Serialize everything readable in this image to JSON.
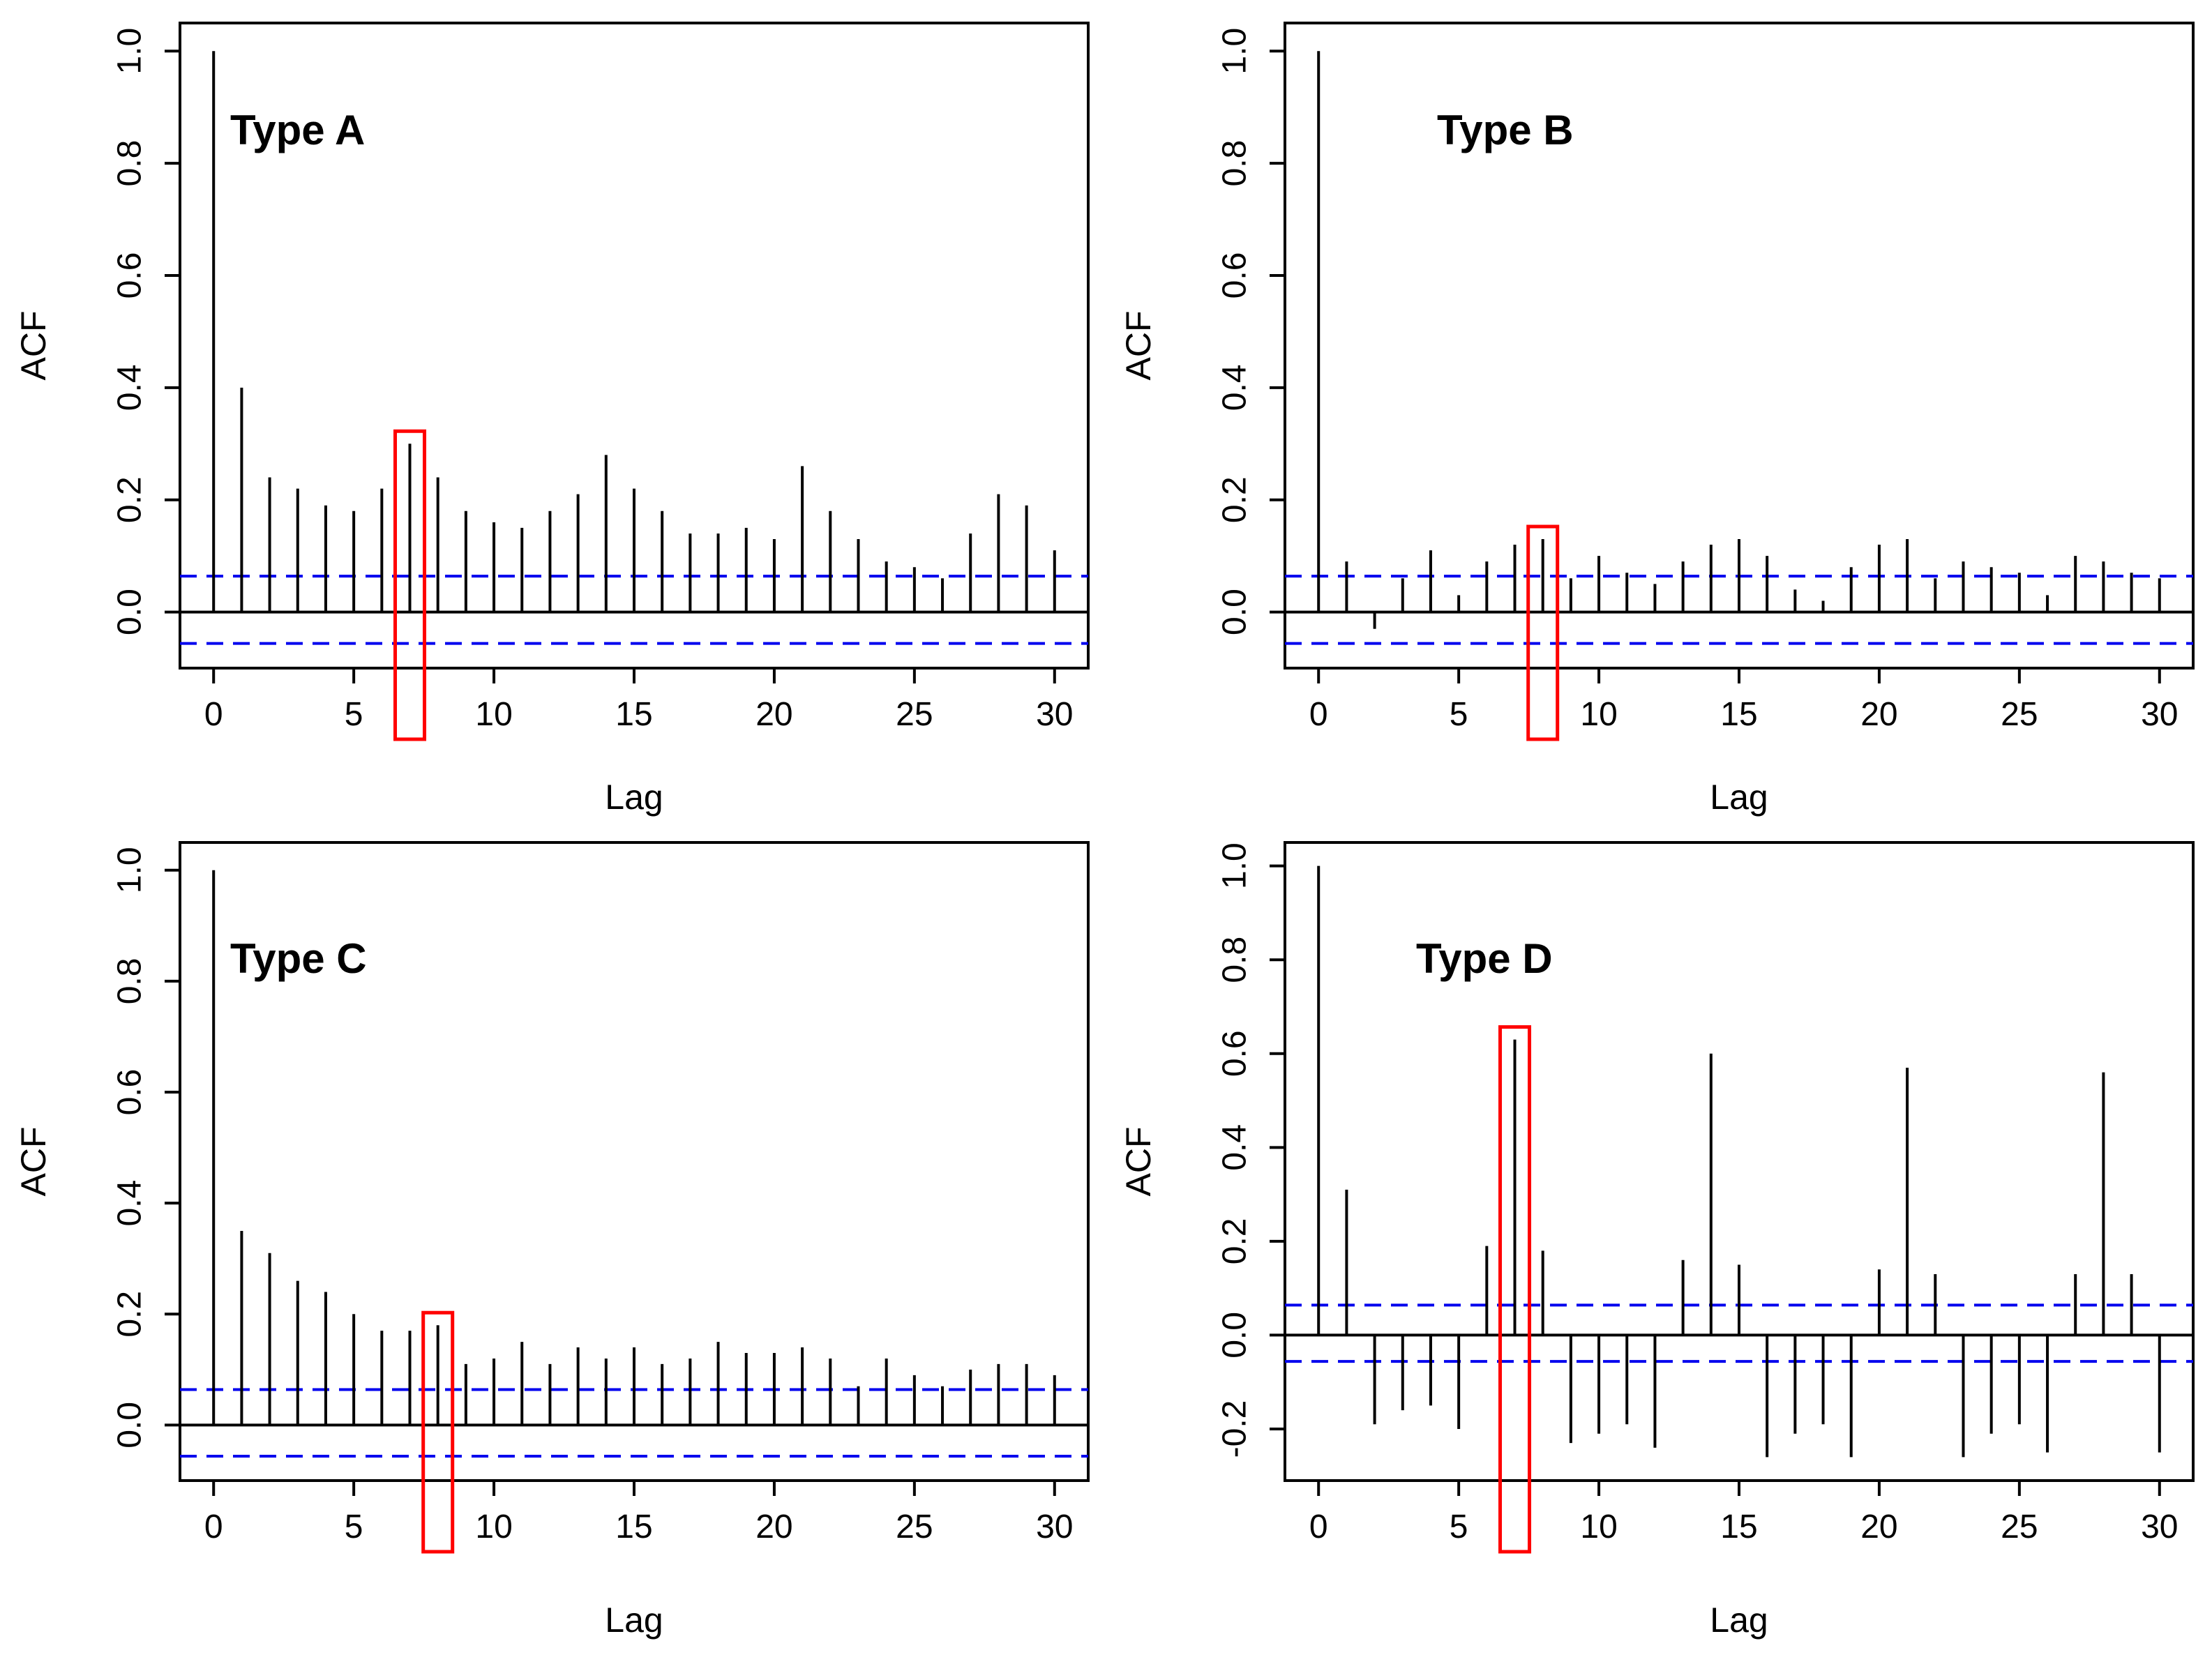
{
  "colors": {
    "stem": "#000000",
    "ci": "#0000ee",
    "highlight": "#ff0000",
    "frame": "#000000",
    "background": "#ffffff"
  },
  "chart_data": [
    {
      "type": "bar",
      "title": "Type A",
      "xlabel": "Lag",
      "ylabel": "ACF",
      "xlim": [
        -1.2,
        31.2
      ],
      "ylim": [
        -0.1,
        1.05
      ],
      "xticks": [
        "0",
        "5",
        "10",
        "15",
        "20",
        "25",
        "30"
      ],
      "yticks": [
        "0.0",
        "0.2",
        "0.4",
        "0.6",
        "0.8",
        "1.0"
      ],
      "ci": [
        0.064,
        -0.056
      ],
      "highlight_lag": 7,
      "x": [
        0,
        1,
        2,
        3,
        4,
        5,
        6,
        7,
        8,
        9,
        10,
        11,
        12,
        13,
        14,
        15,
        16,
        17,
        18,
        19,
        20,
        21,
        22,
        23,
        24,
        25,
        26,
        27,
        28,
        29,
        30
      ],
      "values": [
        1.0,
        0.4,
        0.24,
        0.22,
        0.19,
        0.18,
        0.22,
        0.3,
        0.24,
        0.18,
        0.16,
        0.15,
        0.18,
        0.21,
        0.28,
        0.22,
        0.18,
        0.14,
        0.14,
        0.15,
        0.13,
        0.26,
        0.18,
        0.13,
        0.09,
        0.08,
        0.06,
        0.14,
        0.21,
        0.19,
        0.11
      ]
    },
    {
      "type": "bar",
      "title": "Type B",
      "xlabel": "Lag",
      "ylabel": "ACF",
      "xlim": [
        -1.2,
        31.2
      ],
      "ylim": [
        -0.1,
        1.05
      ],
      "xticks": [
        "0",
        "5",
        "10",
        "15",
        "20",
        "25",
        "30"
      ],
      "yticks": [
        "0.0",
        "0.2",
        "0.4",
        "0.6",
        "0.8",
        "1.0"
      ],
      "ci": [
        0.064,
        -0.056
      ],
      "highlight_lag": 8,
      "x": [
        0,
        1,
        2,
        3,
        4,
        5,
        6,
        7,
        8,
        9,
        10,
        11,
        12,
        13,
        14,
        15,
        16,
        17,
        18,
        19,
        20,
        21,
        22,
        23,
        24,
        25,
        26,
        27,
        28,
        29,
        30
      ],
      "values": [
        1.0,
        0.09,
        -0.03,
        0.06,
        0.11,
        0.03,
        0.09,
        0.12,
        0.13,
        0.06,
        0.1,
        0.07,
        0.05,
        0.09,
        0.12,
        0.13,
        0.1,
        0.04,
        0.02,
        0.08,
        0.12,
        0.13,
        0.06,
        0.09,
        0.08,
        0.07,
        0.03,
        0.1,
        0.09,
        0.07,
        0.06
      ]
    },
    {
      "type": "bar",
      "title": "Type C",
      "xlabel": "Lag",
      "ylabel": "ACF",
      "xlim": [
        -1.2,
        31.2
      ],
      "ylim": [
        -0.1,
        1.05
      ],
      "xticks": [
        "0",
        "5",
        "10",
        "15",
        "20",
        "25",
        "30"
      ],
      "yticks": [
        "0.0",
        "0.2",
        "0.4",
        "0.6",
        "0.8",
        "1.0"
      ],
      "ci": [
        0.064,
        -0.056
      ],
      "highlight_lag": 8,
      "x": [
        0,
        1,
        2,
        3,
        4,
        5,
        6,
        7,
        8,
        9,
        10,
        11,
        12,
        13,
        14,
        15,
        16,
        17,
        18,
        19,
        20,
        21,
        22,
        23,
        24,
        25,
        26,
        27,
        28,
        29,
        30
      ],
      "values": [
        1.0,
        0.35,
        0.31,
        0.26,
        0.24,
        0.2,
        0.17,
        0.17,
        0.18,
        0.11,
        0.12,
        0.15,
        0.11,
        0.14,
        0.12,
        0.14,
        0.11,
        0.12,
        0.15,
        0.13,
        0.13,
        0.14,
        0.12,
        0.07,
        0.12,
        0.09,
        0.07,
        0.1,
        0.11,
        0.11,
        0.09
      ]
    },
    {
      "type": "bar",
      "title": "Type D",
      "xlabel": "Lag",
      "ylabel": "ACF",
      "xlim": [
        -1.2,
        31.2
      ],
      "ylim": [
        -0.31,
        1.05
      ],
      "xticks": [
        "0",
        "5",
        "10",
        "15",
        "20",
        "25",
        "30"
      ],
      "yticks": [
        "-0.2",
        "0.0",
        "0.2",
        "0.4",
        "0.6",
        "0.8",
        "1.0"
      ],
      "ci": [
        0.064,
        -0.056
      ],
      "highlight_lag": 7,
      "x": [
        0,
        1,
        2,
        3,
        4,
        5,
        6,
        7,
        8,
        9,
        10,
        11,
        12,
        13,
        14,
        15,
        16,
        17,
        18,
        19,
        20,
        21,
        22,
        23,
        24,
        25,
        26,
        27,
        28,
        29,
        30
      ],
      "values": [
        1.0,
        0.31,
        -0.19,
        -0.16,
        -0.15,
        -0.2,
        0.19,
        0.63,
        0.18,
        -0.23,
        -0.21,
        -0.19,
        -0.24,
        0.16,
        0.6,
        0.15,
        -0.26,
        -0.21,
        -0.19,
        -0.26,
        0.14,
        0.57,
        0.13,
        -0.26,
        -0.21,
        -0.19,
        -0.25,
        0.13,
        0.56,
        0.13,
        -0.25
      ]
    }
  ]
}
